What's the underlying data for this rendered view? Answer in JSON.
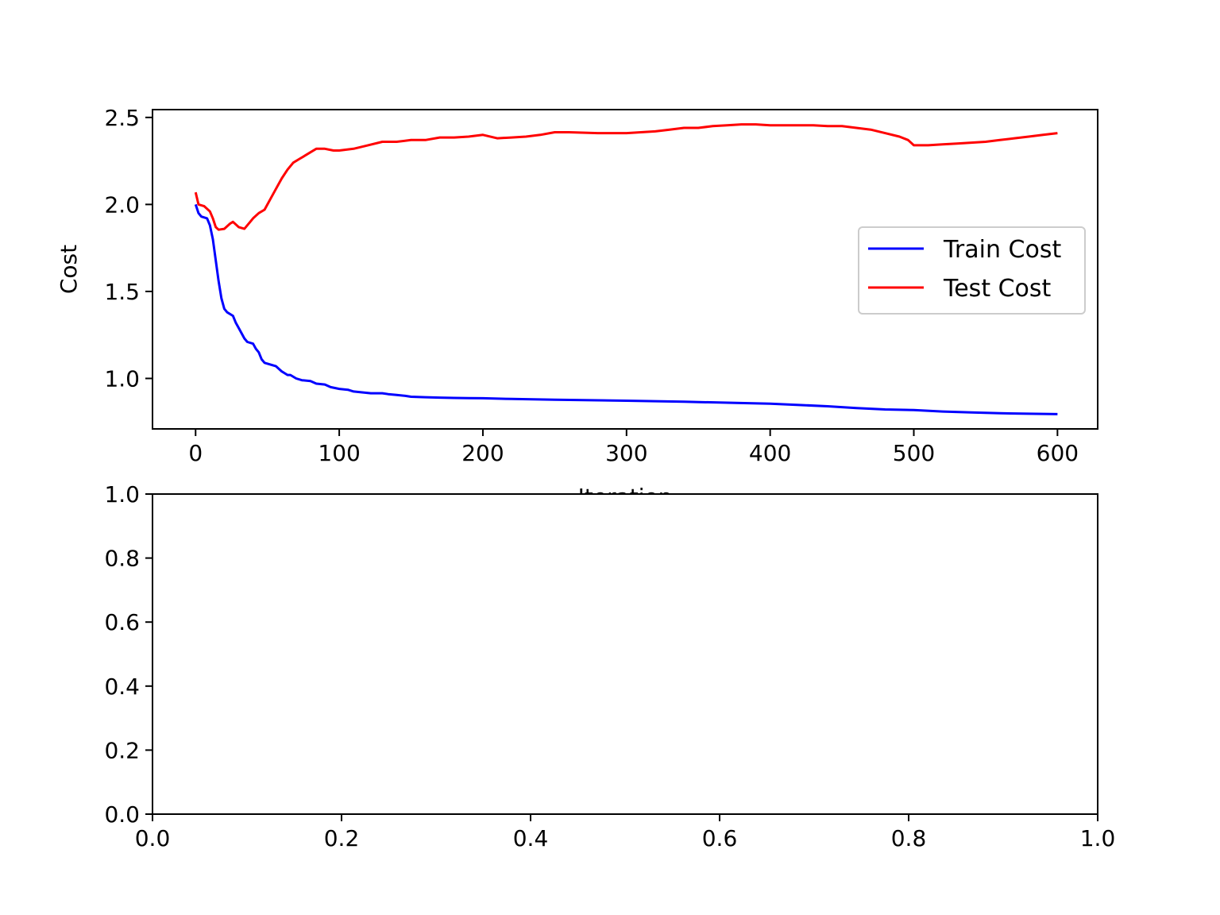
{
  "chart_data": [
    {
      "type": "line",
      "xlabel": "Iteration",
      "ylabel": "Cost",
      "xlim": [
        -30,
        628
      ],
      "ylim": [
        0.71,
        2.545
      ],
      "xticks": [
        0,
        100,
        200,
        300,
        400,
        500,
        600
      ],
      "xtick_labels": [
        "0",
        "100",
        "200",
        "300",
        "400",
        "500",
        "600"
      ],
      "yticks": [
        1.0,
        1.5,
        2.0,
        2.5
      ],
      "ytick_labels": [
        "1.0",
        "1.5",
        "2.0",
        "2.5"
      ],
      "legend_position": "center-right",
      "grid": false,
      "series": [
        {
          "name": "Train Cost",
          "color": "#0000ff",
          "x": [
            0,
            2,
            4,
            8,
            10,
            12,
            14,
            16,
            18,
            20,
            22,
            26,
            28,
            30,
            34,
            36,
            40,
            42,
            44,
            46,
            48,
            52,
            56,
            60,
            62,
            64,
            66,
            70,
            74,
            80,
            84,
            90,
            94,
            100,
            106,
            110,
            116,
            122,
            130,
            134,
            140,
            146,
            150,
            156,
            160,
            170,
            180,
            190,
            200,
            220,
            250,
            300,
            340,
            400,
            440,
            460,
            480,
            500,
            520,
            540,
            560,
            580,
            600
          ],
          "y": [
            2.0,
            1.95,
            1.93,
            1.92,
            1.88,
            1.8,
            1.68,
            1.56,
            1.46,
            1.4,
            1.38,
            1.36,
            1.32,
            1.29,
            1.23,
            1.21,
            1.2,
            1.17,
            1.15,
            1.11,
            1.09,
            1.08,
            1.07,
            1.04,
            1.03,
            1.02,
            1.02,
            1.0,
            0.99,
            0.985,
            0.97,
            0.965,
            0.95,
            0.94,
            0.935,
            0.925,
            0.92,
            0.915,
            0.915,
            0.91,
            0.905,
            0.9,
            0.895,
            0.893,
            0.892,
            0.89,
            0.888,
            0.887,
            0.886,
            0.882,
            0.878,
            0.872,
            0.866,
            0.855,
            0.84,
            0.83,
            0.822,
            0.818,
            0.81,
            0.805,
            0.8,
            0.797,
            0.795
          ]
        },
        {
          "name": "Test Cost",
          "color": "#ff0000",
          "x": [
            0,
            2,
            6,
            10,
            12,
            14,
            16,
            20,
            24,
            26,
            30,
            34,
            38,
            40,
            44,
            48,
            52,
            56,
            60,
            64,
            68,
            72,
            76,
            80,
            84,
            90,
            96,
            100,
            110,
            120,
            130,
            140,
            150,
            160,
            170,
            180,
            190,
            200,
            210,
            220,
            230,
            240,
            250,
            260,
            280,
            300,
            320,
            330,
            340,
            350,
            360,
            370,
            380,
            390,
            400,
            420,
            430,
            440,
            450,
            460,
            470,
            480,
            490,
            496,
            500,
            510,
            520,
            530,
            540,
            550,
            560,
            570,
            580,
            590,
            600
          ],
          "y": [
            2.07,
            2.0,
            1.99,
            1.96,
            1.92,
            1.87,
            1.855,
            1.86,
            1.89,
            1.9,
            1.87,
            1.86,
            1.9,
            1.92,
            1.95,
            1.97,
            2.03,
            2.09,
            2.15,
            2.2,
            2.24,
            2.26,
            2.28,
            2.3,
            2.32,
            2.32,
            2.31,
            2.31,
            2.32,
            2.34,
            2.36,
            2.36,
            2.37,
            2.37,
            2.385,
            2.385,
            2.39,
            2.4,
            2.38,
            2.385,
            2.39,
            2.4,
            2.415,
            2.415,
            2.41,
            2.41,
            2.42,
            2.43,
            2.44,
            2.44,
            2.45,
            2.455,
            2.46,
            2.46,
            2.455,
            2.455,
            2.455,
            2.45,
            2.45,
            2.44,
            2.43,
            2.41,
            2.39,
            2.37,
            2.34,
            2.34,
            2.345,
            2.35,
            2.355,
            2.36,
            2.37,
            2.38,
            2.39,
            2.4,
            2.41
          ]
        }
      ]
    },
    {
      "type": "line",
      "xlabel": "",
      "ylabel": "",
      "xlim": [
        0,
        1
      ],
      "ylim": [
        0,
        1
      ],
      "xticks": [
        0,
        0.2,
        0.4,
        0.6,
        0.8,
        1.0
      ],
      "xtick_labels": [
        "0.0",
        "0.2",
        "0.4",
        "0.6",
        "0.8",
        "1.0"
      ],
      "yticks": [
        0,
        0.2,
        0.4,
        0.6,
        0.8,
        1.0
      ],
      "ytick_labels": [
        "0.0",
        "0.2",
        "0.4",
        "0.6",
        "0.8",
        "1.0"
      ],
      "grid": false,
      "series": []
    }
  ]
}
